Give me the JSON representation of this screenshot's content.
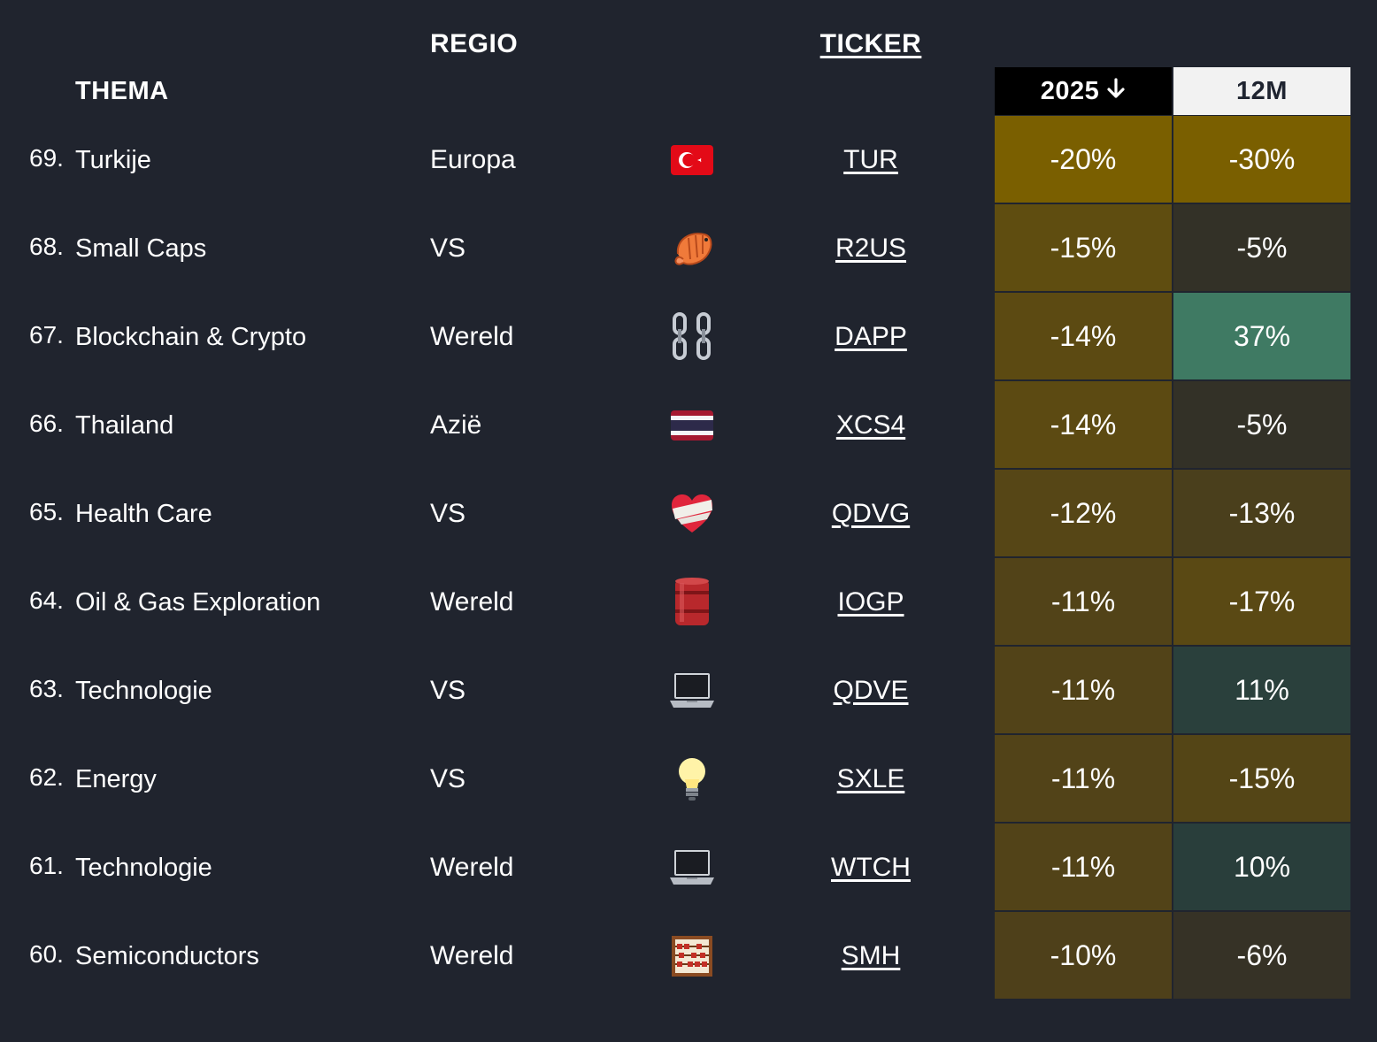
{
  "headers": {
    "thema": "THEMA",
    "regio": "REGIO",
    "ticker": "TICKER",
    "col2025": "2025",
    "col2025_sort_icon": "arrow-down-icon",
    "col12m": "12M"
  },
  "rows": [
    {
      "rank": "69.",
      "name": "Turkije",
      "regio": "Europa",
      "icon": "turkey-flag-icon",
      "ticker": "TUR",
      "ytd": "-20%",
      "m12": "-30%",
      "ytd_color": "#7a5f00",
      "m12_color": "#7a5f00"
    },
    {
      "rank": "68.",
      "name": "Small Caps",
      "regio": "VS",
      "icon": "shrimp-icon",
      "ticker": "R2US",
      "ytd": "-15%",
      "m12": "-5%",
      "ytd_color": "#5f4d10",
      "m12_color": "#333127"
    },
    {
      "rank": "67.",
      "name": "Blockchain & Crypto",
      "regio": "Wereld",
      "icon": "chain-icon",
      "ticker": "DAPP",
      "ytd": "-14%",
      "m12": "37%",
      "ytd_color": "#5c4a12",
      "m12_color": "#3f7a63"
    },
    {
      "rank": "66.",
      "name": "Thailand",
      "regio": "Azië",
      "icon": "thailand-flag-icon",
      "ticker": "XCS4",
      "ytd": "-14%",
      "m12": "-5%",
      "ytd_color": "#5c4a12",
      "m12_color": "#333127"
    },
    {
      "rank": "65.",
      "name": "Health Care",
      "regio": "VS",
      "icon": "bandaged-heart-icon",
      "ticker": "QDVG",
      "ytd": "-12%",
      "m12": "-13%",
      "ytd_color": "#564616",
      "m12_color": "#4a3f1c"
    },
    {
      "rank": "64.",
      "name": "Oil & Gas Exploration",
      "regio": "Wereld",
      "icon": "oil-drum-icon",
      "ticker": "IOGP",
      "ytd": "-11%",
      "m12": "-17%",
      "ytd_color": "#524318",
      "m12_color": "#5a4914"
    },
    {
      "rank": "63.",
      "name": "Technologie",
      "regio": "VS",
      "icon": "laptop-icon",
      "ticker": "QDVE",
      "ytd": "-11%",
      "m12": "11%",
      "ytd_color": "#524318",
      "m12_color": "#2a403c"
    },
    {
      "rank": "62.",
      "name": "Energy",
      "regio": "VS",
      "icon": "light-bulb-icon",
      "ticker": "SXLE",
      "ytd": "-11%",
      "m12": "-15%",
      "ytd_color": "#524318",
      "m12_color": "#544516"
    },
    {
      "rank": "61.",
      "name": "Technologie",
      "regio": "Wereld",
      "icon": "laptop-icon",
      "ticker": "WTCH",
      "ytd": "-11%",
      "m12": "10%",
      "ytd_color": "#524318",
      "m12_color": "#293e3b"
    },
    {
      "rank": "60.",
      "name": "Semiconductors",
      "regio": "Wereld",
      "icon": "abacus-icon",
      "ticker": "SMH",
      "ytd": "-10%",
      "m12": "-6%",
      "ytd_color": "#4e401a",
      "m12_color": "#363226"
    }
  ]
}
